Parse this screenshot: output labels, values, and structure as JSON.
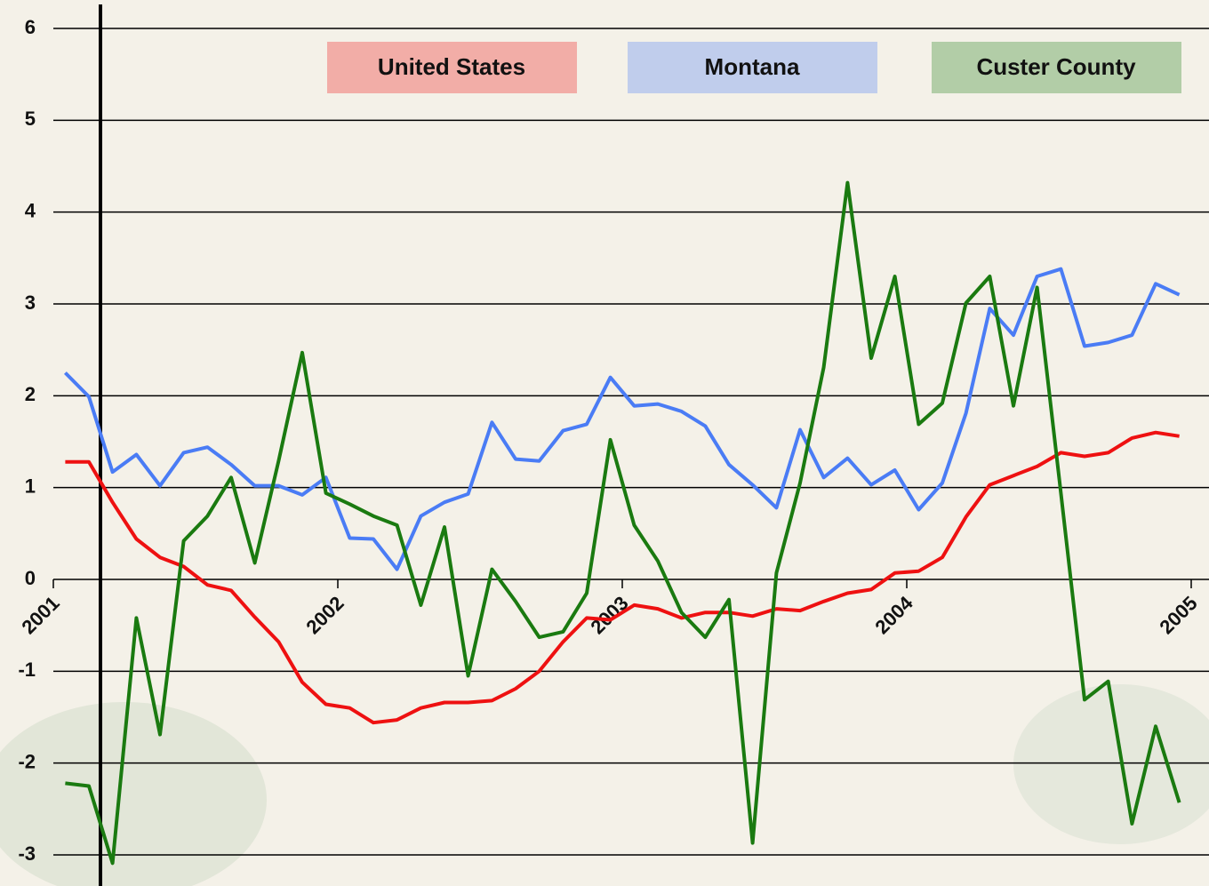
{
  "chart_data": {
    "type": "line",
    "x": [
      2001.042,
      2001.125,
      2001.208,
      2001.292,
      2001.375,
      2001.458,
      2001.542,
      2001.625,
      2001.708,
      2001.792,
      2001.875,
      2001.958,
      2002.042,
      2002.125,
      2002.208,
      2002.292,
      2002.375,
      2002.458,
      2002.542,
      2002.625,
      2002.708,
      2002.792,
      2002.875,
      2002.958,
      2003.042,
      2003.125,
      2003.208,
      2003.292,
      2003.375,
      2003.458,
      2003.542,
      2003.625,
      2003.708,
      2003.792,
      2003.875,
      2003.958,
      2004.042,
      2004.125,
      2004.208,
      2004.292,
      2004.375,
      2004.458,
      2004.542,
      2004.625,
      2004.708,
      2004.792,
      2004.875,
      2004.958
    ],
    "xlim": [
      2001,
      2005
    ],
    "xticks": [
      2001,
      2002,
      2003,
      2004,
      2005
    ],
    "ylim": [
      -3,
      6
    ],
    "yticks": [
      -3,
      -2,
      -1,
      0,
      1,
      2,
      3,
      4,
      5,
      6
    ],
    "grid": true,
    "legend": "top",
    "series": [
      {
        "name": "United States",
        "color": "#ee1111",
        "values": [
          1.28,
          1.28,
          0.84,
          0.44,
          0.24,
          0.14,
          -0.06,
          -0.12,
          -0.41,
          -0.68,
          -1.12,
          -1.36,
          -1.4,
          -1.56,
          -1.53,
          -1.4,
          -1.34,
          -1.34,
          -1.32,
          -1.19,
          -1.0,
          -0.68,
          -0.42,
          -0.44,
          -0.28,
          -0.32,
          -0.42,
          -0.36,
          -0.36,
          -0.4,
          -0.32,
          -0.34,
          -0.24,
          -0.15,
          -0.11,
          0.07,
          0.09,
          0.24,
          0.68,
          1.03,
          1.13,
          1.23,
          1.38,
          1.34,
          1.38,
          1.54,
          1.6,
          1.56
        ]
      },
      {
        "name": "Montana",
        "color": "#4a7cf5",
        "values": [
          2.25,
          1.99,
          1.17,
          1.36,
          1.02,
          1.38,
          1.44,
          1.25,
          1.02,
          1.02,
          0.92,
          1.11,
          0.45,
          0.44,
          0.11,
          0.69,
          0.84,
          0.93,
          1.71,
          1.31,
          1.29,
          1.62,
          1.69,
          2.2,
          1.89,
          1.91,
          1.83,
          1.67,
          1.25,
          1.03,
          0.78,
          1.63,
          1.11,
          1.32,
          1.03,
          1.19,
          0.76,
          1.05,
          1.81,
          2.95,
          2.66,
          3.3,
          3.38,
          2.54,
          2.58,
          2.66,
          3.22,
          3.1
        ]
      },
      {
        "name": "Custer County",
        "color": "#1a7a10",
        "values": [
          -2.22,
          -2.25,
          -3.09,
          -0.42,
          -1.69,
          0.42,
          0.69,
          1.11,
          0.18,
          1.29,
          2.47,
          0.94,
          0.82,
          0.69,
          0.59,
          -0.28,
          0.57,
          -1.05,
          0.11,
          -0.24,
          -0.63,
          -0.57,
          -0.15,
          1.52,
          0.59,
          0.2,
          -0.36,
          -0.63,
          -0.22,
          -2.87,
          0.07,
          1.05,
          2.31,
          4.32,
          2.41,
          3.3,
          1.69,
          1.92,
          3.01,
          3.3,
          1.89,
          3.18,
          0.94,
          -1.31,
          -1.11,
          -2.66,
          -1.6,
          -2.43
        ]
      }
    ]
  }
}
